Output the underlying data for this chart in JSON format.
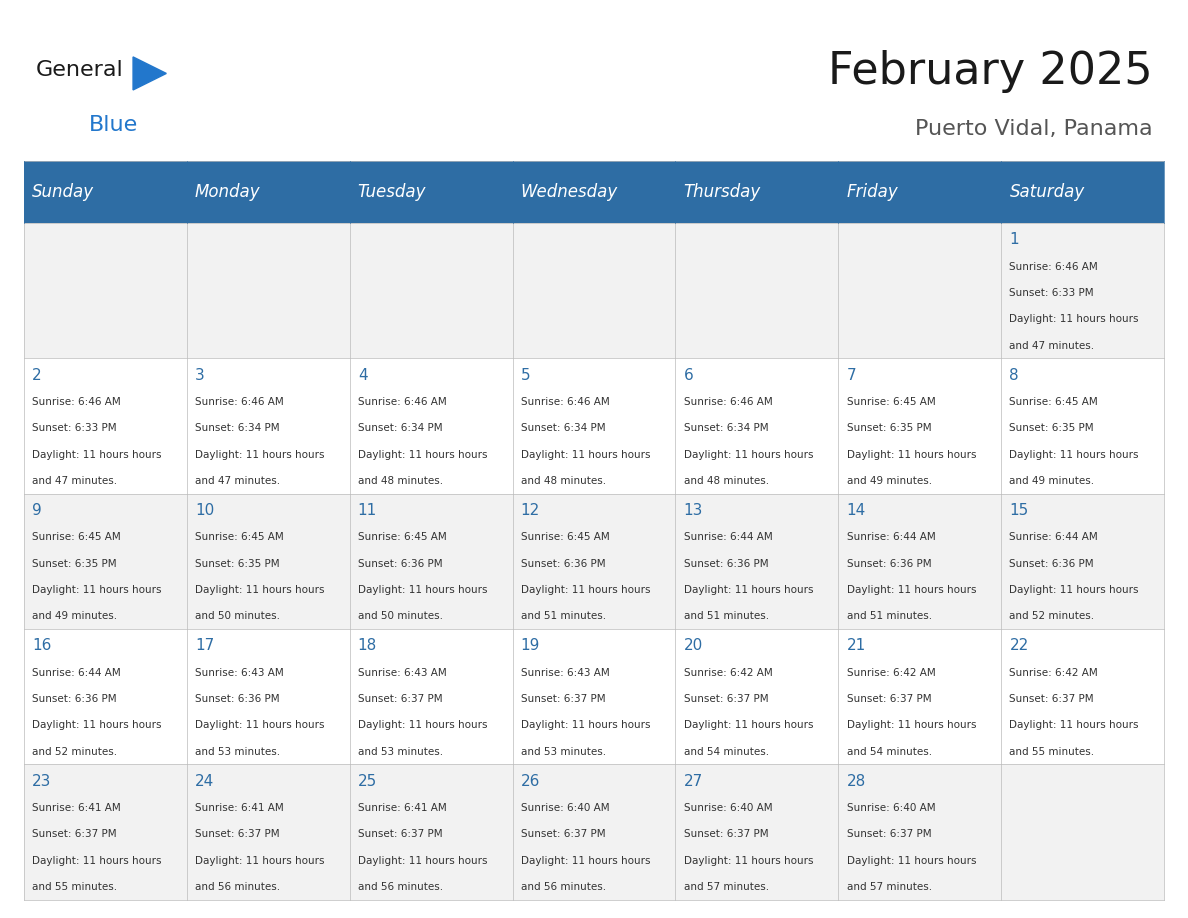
{
  "title": "February 2025",
  "subtitle": "Puerto Vidal, Panama",
  "days_of_week": [
    "Sunday",
    "Monday",
    "Tuesday",
    "Wednesday",
    "Thursday",
    "Friday",
    "Saturday"
  ],
  "header_bg": "#2E6DA4",
  "header_text": "#FFFFFF",
  "cell_bg_light": "#F2F2F2",
  "cell_bg_white": "#FFFFFF",
  "day_num_color": "#2E6DA4",
  "text_color": "#333333",
  "title_color": "#1a1a1a",
  "subtitle_color": "#555555",
  "logo_general_color": "#1a1a1a",
  "logo_blue_color": "#2277CC",
  "calendar_data": [
    [
      null,
      null,
      null,
      null,
      null,
      null,
      {
        "day": 1,
        "sunrise": "6:46 AM",
        "sunset": "6:33 PM",
        "daylight": "11 hours and 47 minutes."
      }
    ],
    [
      {
        "day": 2,
        "sunrise": "6:46 AM",
        "sunset": "6:33 PM",
        "daylight": "11 hours and 47 minutes."
      },
      {
        "day": 3,
        "sunrise": "6:46 AM",
        "sunset": "6:34 PM",
        "daylight": "11 hours and 47 minutes."
      },
      {
        "day": 4,
        "sunrise": "6:46 AM",
        "sunset": "6:34 PM",
        "daylight": "11 hours and 48 minutes."
      },
      {
        "day": 5,
        "sunrise": "6:46 AM",
        "sunset": "6:34 PM",
        "daylight": "11 hours and 48 minutes."
      },
      {
        "day": 6,
        "sunrise": "6:46 AM",
        "sunset": "6:34 PM",
        "daylight": "11 hours and 48 minutes."
      },
      {
        "day": 7,
        "sunrise": "6:45 AM",
        "sunset": "6:35 PM",
        "daylight": "11 hours and 49 minutes."
      },
      {
        "day": 8,
        "sunrise": "6:45 AM",
        "sunset": "6:35 PM",
        "daylight": "11 hours and 49 minutes."
      }
    ],
    [
      {
        "day": 9,
        "sunrise": "6:45 AM",
        "sunset": "6:35 PM",
        "daylight": "11 hours and 49 minutes."
      },
      {
        "day": 10,
        "sunrise": "6:45 AM",
        "sunset": "6:35 PM",
        "daylight": "11 hours and 50 minutes."
      },
      {
        "day": 11,
        "sunrise": "6:45 AM",
        "sunset": "6:36 PM",
        "daylight": "11 hours and 50 minutes."
      },
      {
        "day": 12,
        "sunrise": "6:45 AM",
        "sunset": "6:36 PM",
        "daylight": "11 hours and 51 minutes."
      },
      {
        "day": 13,
        "sunrise": "6:44 AM",
        "sunset": "6:36 PM",
        "daylight": "11 hours and 51 minutes."
      },
      {
        "day": 14,
        "sunrise": "6:44 AM",
        "sunset": "6:36 PM",
        "daylight": "11 hours and 51 minutes."
      },
      {
        "day": 15,
        "sunrise": "6:44 AM",
        "sunset": "6:36 PM",
        "daylight": "11 hours and 52 minutes."
      }
    ],
    [
      {
        "day": 16,
        "sunrise": "6:44 AM",
        "sunset": "6:36 PM",
        "daylight": "11 hours and 52 minutes."
      },
      {
        "day": 17,
        "sunrise": "6:43 AM",
        "sunset": "6:36 PM",
        "daylight": "11 hours and 53 minutes."
      },
      {
        "day": 18,
        "sunrise": "6:43 AM",
        "sunset": "6:37 PM",
        "daylight": "11 hours and 53 minutes."
      },
      {
        "day": 19,
        "sunrise": "6:43 AM",
        "sunset": "6:37 PM",
        "daylight": "11 hours and 53 minutes."
      },
      {
        "day": 20,
        "sunrise": "6:42 AM",
        "sunset": "6:37 PM",
        "daylight": "11 hours and 54 minutes."
      },
      {
        "day": 21,
        "sunrise": "6:42 AM",
        "sunset": "6:37 PM",
        "daylight": "11 hours and 54 minutes."
      },
      {
        "day": 22,
        "sunrise": "6:42 AM",
        "sunset": "6:37 PM",
        "daylight": "11 hours and 55 minutes."
      }
    ],
    [
      {
        "day": 23,
        "sunrise": "6:41 AM",
        "sunset": "6:37 PM",
        "daylight": "11 hours and 55 minutes."
      },
      {
        "day": 24,
        "sunrise": "6:41 AM",
        "sunset": "6:37 PM",
        "daylight": "11 hours and 56 minutes."
      },
      {
        "day": 25,
        "sunrise": "6:41 AM",
        "sunset": "6:37 PM",
        "daylight": "11 hours and 56 minutes."
      },
      {
        "day": 26,
        "sunrise": "6:40 AM",
        "sunset": "6:37 PM",
        "daylight": "11 hours and 56 minutes."
      },
      {
        "day": 27,
        "sunrise": "6:40 AM",
        "sunset": "6:37 PM",
        "daylight": "11 hours and 57 minutes."
      },
      {
        "day": 28,
        "sunrise": "6:40 AM",
        "sunset": "6:37 PM",
        "daylight": "11 hours and 57 minutes."
      },
      null
    ]
  ]
}
